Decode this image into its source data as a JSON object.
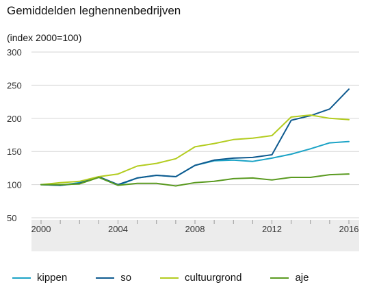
{
  "title": "Gemiddelden leghennenbedrijven",
  "subtitle": "(index 2000=100)",
  "chart_data": {
    "type": "line",
    "title": "Gemiddelden leghennenbedrijven",
    "subtitle": "(index 2000=100)",
    "xlabel": "",
    "ylabel": "",
    "x": [
      2000,
      2001,
      2002,
      2003,
      2004,
      2005,
      2006,
      2007,
      2008,
      2009,
      2010,
      2011,
      2012,
      2013,
      2014,
      2015,
      2016
    ],
    "x_tick_labels": [
      "2000",
      "2004",
      "2008",
      "2012",
      "2016"
    ],
    "y_ticks": [
      50,
      100,
      150,
      200,
      250,
      300
    ],
    "ylim": [
      50,
      300
    ],
    "grid": true,
    "legend_position": "bottom",
    "series": [
      {
        "name": "kippen",
        "color": "#1ba3c6",
        "values": [
          100,
          99,
          103,
          111,
          99,
          110,
          114,
          112,
          129,
          136,
          137,
          135,
          140,
          146,
          154,
          163,
          165
        ]
      },
      {
        "name": "so",
        "color": "#0e5a8f",
        "values": [
          100,
          99,
          102,
          112,
          100,
          110,
          114,
          112,
          129,
          137,
          140,
          141,
          145,
          197,
          204,
          214,
          244
        ]
      },
      {
        "name": "cultuurgrond",
        "color": "#b3cc1f",
        "values": [
          100,
          103,
          105,
          112,
          116,
          128,
          132,
          139,
          157,
          162,
          168,
          170,
          174,
          202,
          205,
          200,
          198
        ]
      },
      {
        "name": "aje",
        "color": "#5a9a20",
        "values": [
          100,
          100,
          101,
          111,
          99,
          102,
          102,
          98,
          103,
          105,
          109,
          110,
          107,
          111,
          111,
          115,
          116
        ]
      }
    ]
  }
}
